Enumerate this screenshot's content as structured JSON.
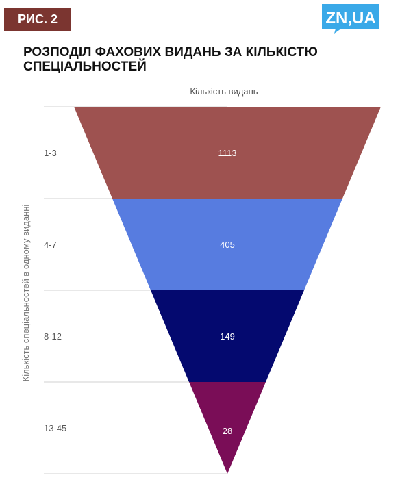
{
  "header": {
    "badge": "РИС. 2",
    "logo_text": "ZN,UA",
    "logo_color": "#3aa9e8"
  },
  "title": "РОЗПОДІЛ ФАХОВИХ ВИДАНЬ ЗА КІЛЬКІСТЮ СПЕЦІАЛЬНОСТЕЙ",
  "chart_data": {
    "type": "funnel",
    "title": "РОЗПОДІЛ ФАХОВИХ ВИДАНЬ ЗА КІЛЬКІСТЮ СПЕЦІАЛЬНОСТЕЙ",
    "xlabel": "Кількість видань",
    "ylabel": "Кількість спеціальностей в одному виданні",
    "categories": [
      "1-3",
      "4-7",
      "8-12",
      "13-45"
    ],
    "values": [
      1113,
      405,
      149,
      28
    ],
    "colors": [
      "#9e5250",
      "#577ce0",
      "#04096f",
      "#7a0d57"
    ],
    "grid": true
  }
}
